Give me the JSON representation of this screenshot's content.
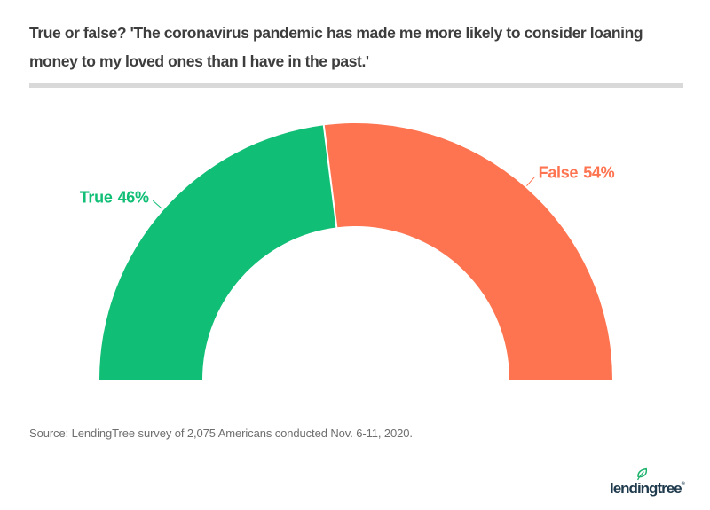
{
  "header": {
    "title_lines": [
      "True or false? 'The coronavirus pandemic has made me more likely to consider loaning",
      "money to my loved ones than I have in the past.'"
    ]
  },
  "chart_data": {
    "type": "pie",
    "variant": "half-donut-gauge",
    "title": "True or false? 'The coronavirus pandemic has made me more likely to consider loaning money to my loved ones than I have in the past.'",
    "slices": [
      {
        "label": "True",
        "pct_label": "46%",
        "value": 46,
        "color": "#10BE76"
      },
      {
        "label": "False",
        "pct_label": "54%",
        "value": 54,
        "color": "#FF7450"
      }
    ],
    "start_angle_deg": 180,
    "end_angle_deg": 0,
    "legend_position": "callout-labels",
    "grid": false
  },
  "footer": {
    "source": "Source: LendingTree survey of 2,075 Americans conducted Nov. 6-11, 2020.",
    "logo_text": "lendingtree",
    "logo_trademark": "®"
  },
  "colors": {
    "true_green": "#10BE76",
    "false_orange": "#FF7450",
    "divider": "#D9D9D9",
    "title_text": "#3D3D3D",
    "source_text": "#6E6E6E",
    "logo_navy": "#1E3A4C",
    "leaf_green": "#1EB26D"
  }
}
